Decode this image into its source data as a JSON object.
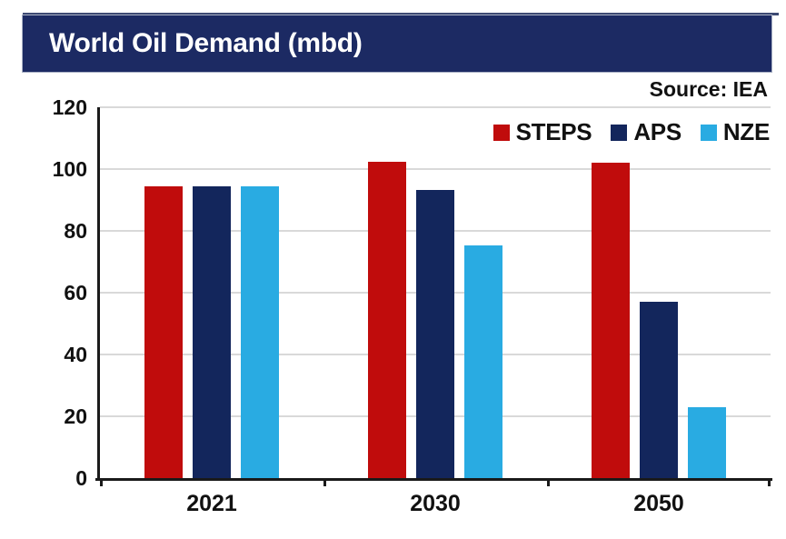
{
  "header": {
    "title": "World Oil Demand (mbd)"
  },
  "source": {
    "label": "Source: IEA"
  },
  "chart_data": {
    "type": "bar",
    "title": "World Oil Demand (mbd)",
    "source_note": "Source: IEA",
    "categories": [
      "2021",
      "2030",
      "2050"
    ],
    "series": [
      {
        "name": "STEPS",
        "color": "#c00c0c",
        "values": [
          94.5,
          102.4,
          102.1
        ]
      },
      {
        "name": "APS",
        "color": "#13265c",
        "values": [
          94.5,
          93.1,
          57.0
        ]
      },
      {
        "name": "NZE",
        "color": "#29abe2",
        "values": [
          94.5,
          75.2,
          22.8
        ]
      }
    ],
    "xlabel": "",
    "ylabel": "",
    "ylim": [
      0,
      120
    ],
    "yticks": [
      0,
      20,
      40,
      60,
      80,
      100,
      120
    ],
    "grid": true,
    "legend_position": "top-right"
  },
  "colors": {
    "banner_background": "#1c2a63",
    "banner_text": "#ffffff",
    "axis": "#1a1a1a",
    "gridline": "#d9d9d9",
    "text": "#111111",
    "top_rule": "#3d4a73"
  }
}
